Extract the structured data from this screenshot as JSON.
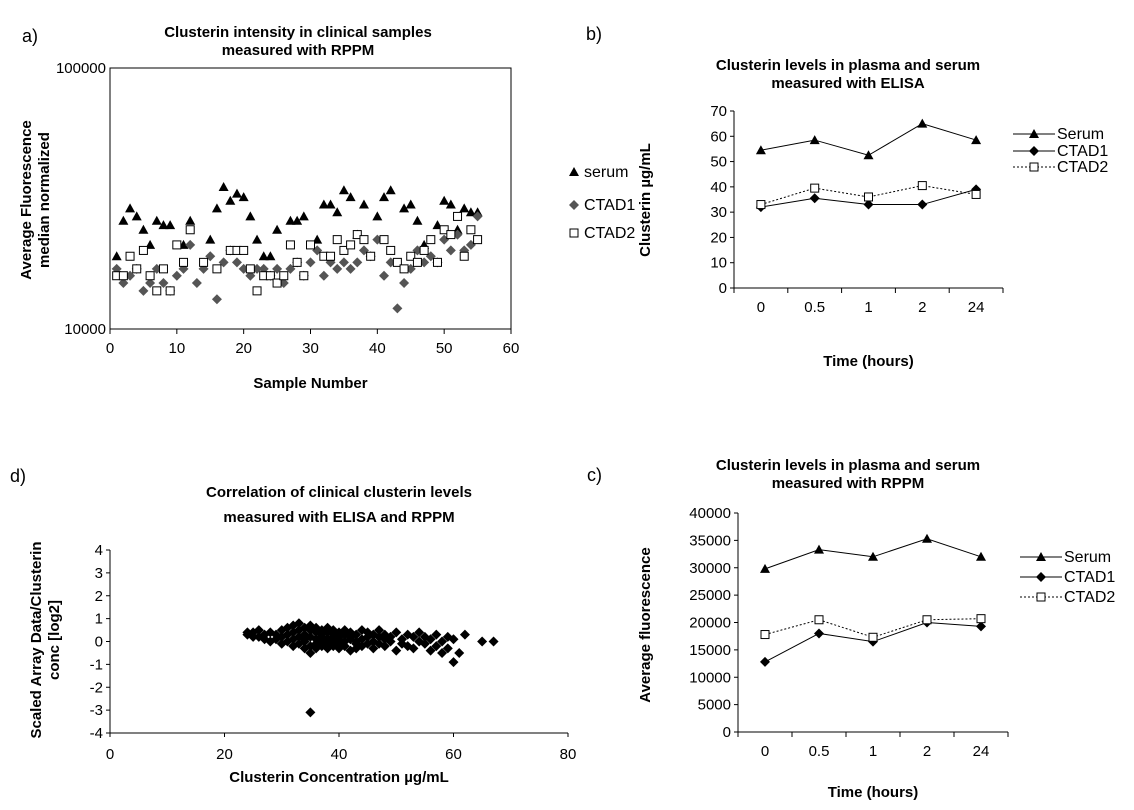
{
  "chart_data": [
    {
      "id": "a",
      "panel_label": "a)",
      "type": "scatter",
      "title": [
        "Clusterin intensity in clinical samples",
        "measured with RPPM"
      ],
      "xlabel": "Sample Number",
      "ylabel": [
        "Average Fluorescence",
        "median normalized"
      ],
      "xlim": [
        0,
        60
      ],
      "ylim": [
        10000,
        100000
      ],
      "yscale": "log",
      "xticks": [
        0,
        10,
        20,
        30,
        40,
        50,
        60
      ],
      "yticks": [
        10000,
        100000
      ],
      "ytick_labels": [
        "10000",
        "100000"
      ],
      "legend_position": "right",
      "series": [
        {
          "name": "serum",
          "marker": "triangle",
          "color": "#000000",
          "x": [
            1,
            2,
            3,
            4,
            5,
            6,
            7,
            8,
            9,
            11,
            12,
            15,
            16,
            17,
            18,
            19,
            20,
            21,
            22,
            23,
            24,
            25,
            27,
            28,
            29,
            31,
            32,
            33,
            34,
            35,
            36,
            37,
            38,
            40,
            41,
            42,
            44,
            45,
            46,
            47,
            49,
            50,
            51,
            52,
            53,
            54,
            55
          ],
          "y": [
            19000,
            26000,
            29000,
            27000,
            24000,
            21000,
            26000,
            25000,
            25000,
            21000,
            26000,
            22000,
            29000,
            35000,
            31000,
            33000,
            32000,
            27000,
            22000,
            19000,
            19000,
            24000,
            26000,
            26000,
            27000,
            22000,
            30000,
            30000,
            28000,
            34000,
            32000,
            23000,
            30000,
            27000,
            32000,
            34000,
            29000,
            30000,
            26000,
            21000,
            25000,
            31000,
            30000,
            24000,
            29000,
            28000,
            28000
          ]
        },
        {
          "name": "CTAD1",
          "marker": "diamond",
          "color": "#555555",
          "x": [
            1,
            2,
            3,
            4,
            5,
            6,
            7,
            8,
            9,
            10,
            11,
            12,
            13,
            14,
            15,
            16,
            17,
            18,
            19,
            20,
            21,
            22,
            23,
            24,
            25,
            26,
            27,
            28,
            29,
            30,
            31,
            32,
            33,
            34,
            35,
            36,
            37,
            38,
            39,
            40,
            41,
            42,
            43,
            44,
            45,
            46,
            47,
            48,
            49,
            50,
            51,
            52,
            53,
            54,
            55
          ],
          "y": [
            17000,
            15000,
            16000,
            17000,
            14000,
            15000,
            17000,
            15000,
            14000,
            16000,
            17000,
            21000,
            15000,
            17000,
            19000,
            13000,
            18000,
            20000,
            18000,
            17000,
            16000,
            17000,
            17000,
            16000,
            17000,
            15000,
            17000,
            18000,
            16000,
            18000,
            20000,
            16000,
            18000,
            17000,
            18000,
            17000,
            18000,
            20000,
            19000,
            22000,
            16000,
            18000,
            12000,
            15000,
            17000,
            20000,
            18000,
            19000,
            18000,
            22000,
            20000,
            23000,
            20000,
            21000,
            27000
          ]
        },
        {
          "name": "CTAD2",
          "marker": "square",
          "color": "#000000",
          "x": [
            1,
            2,
            3,
            4,
            5,
            6,
            7,
            8,
            9,
            10,
            11,
            12,
            14,
            16,
            18,
            19,
            20,
            21,
            22,
            23,
            24,
            25,
            26,
            27,
            28,
            29,
            30,
            32,
            33,
            34,
            35,
            36,
            37,
            38,
            39,
            41,
            42,
            43,
            44,
            45,
            46,
            47,
            48,
            49,
            50,
            51,
            52,
            53,
            54,
            55
          ],
          "y": [
            16000,
            16000,
            19000,
            17000,
            20000,
            16000,
            14000,
            17000,
            14000,
            21000,
            18000,
            24000,
            18000,
            17000,
            20000,
            20000,
            20000,
            17000,
            14000,
            16000,
            16000,
            15000,
            16000,
            21000,
            18000,
            16000,
            21000,
            19000,
            19000,
            22000,
            20000,
            21000,
            23000,
            22000,
            19000,
            22000,
            20000,
            18000,
            17000,
            19000,
            18000,
            20000,
            22000,
            18000,
            24000,
            23000,
            27000,
            19000,
            24000,
            22000
          ]
        }
      ]
    },
    {
      "id": "b",
      "panel_label": "b)",
      "type": "line",
      "title": [
        "Clusterin levels in plasma and serum",
        "measured with ELISA"
      ],
      "xlabel": "Time (hours)",
      "ylabel": [
        "Clusterin µg/mL"
      ],
      "categories": [
        "0",
        "0.5",
        "1",
        "2",
        "24"
      ],
      "ylim": [
        0,
        70
      ],
      "yticks": [
        0,
        10,
        20,
        30,
        40,
        50,
        60,
        70
      ],
      "legend_position": "right",
      "series": [
        {
          "name": "Serum",
          "marker": "triangle",
          "line": "solid",
          "values": [
            54.5,
            58.5,
            52.5,
            65,
            58.5
          ]
        },
        {
          "name": "CTAD1",
          "marker": "diamond",
          "line": "solid",
          "values": [
            32,
            35.5,
            33,
            33,
            39
          ]
        },
        {
          "name": "CTAD2",
          "marker": "square",
          "line": "dotted",
          "values": [
            33,
            39.5,
            36,
            40.5,
            37
          ]
        }
      ]
    },
    {
      "id": "c",
      "panel_label": "c)",
      "type": "line",
      "title": [
        "Clusterin levels in plasma and serum",
        "measured with RPPM"
      ],
      "xlabel": "Time (hours)",
      "ylabel": [
        "Average fluorescence"
      ],
      "categories": [
        "0",
        "0.5",
        "1",
        "2",
        "24"
      ],
      "ylim": [
        0,
        40000
      ],
      "yticks": [
        0,
        5000,
        10000,
        15000,
        20000,
        25000,
        30000,
        35000,
        40000
      ],
      "legend_position": "right",
      "series": [
        {
          "name": "Serum",
          "marker": "triangle",
          "line": "solid",
          "values": [
            29800,
            33300,
            32000,
            35300,
            32000
          ]
        },
        {
          "name": "CTAD1",
          "marker": "diamond",
          "line": "solid",
          "values": [
            12800,
            18000,
            16500,
            20000,
            19300
          ]
        },
        {
          "name": "CTAD2",
          "marker": "square",
          "line": "dotted",
          "values": [
            17800,
            20500,
            17300,
            20500,
            20700
          ]
        }
      ]
    },
    {
      "id": "d",
      "panel_label": "d)",
      "type": "scatter",
      "title": [
        "Correlation of clinical clusterin levels",
        "measured with ELISA and RPPM"
      ],
      "xlabel": "Clusterin Concentration µg/mL",
      "ylabel": [
        "Scaled Array Data/Clusterin",
        "conc [log2]"
      ],
      "xlim": [
        0,
        80
      ],
      "ylim": [
        -4,
        4
      ],
      "xticks": [
        0,
        20,
        40,
        60,
        80
      ],
      "yticks": [
        4,
        3,
        2,
        1,
        0,
        -1,
        -2,
        -3,
        -4
      ],
      "series": [
        {
          "name": "",
          "marker": "diamond",
          "color": "#000000",
          "x": [
            24,
            24,
            25,
            25,
            26,
            26,
            27,
            27,
            28,
            28,
            29,
            29,
            30,
            30,
            30,
            31,
            31,
            31,
            32,
            32,
            32,
            32,
            33,
            33,
            33,
            33,
            34,
            34,
            34,
            34,
            34,
            35,
            35,
            35,
            35,
            35,
            36,
            36,
            36,
            36,
            36,
            37,
            37,
            37,
            37,
            37,
            38,
            38,
            38,
            38,
            38,
            39,
            39,
            39,
            39,
            39,
            40,
            40,
            40,
            40,
            40,
            41,
            41,
            41,
            41,
            42,
            42,
            42,
            42,
            43,
            43,
            43,
            43,
            44,
            44,
            44,
            45,
            45,
            45,
            46,
            46,
            46,
            47,
            47,
            47,
            48,
            48,
            48,
            49,
            49,
            50,
            50,
            51,
            51,
            52,
            52,
            53,
            53,
            54,
            54,
            55,
            55,
            56,
            56,
            57,
            57,
            58,
            58,
            59,
            59,
            60,
            60,
            61,
            62,
            65,
            67,
            35
          ],
          "y": [
            0.3,
            0.4,
            0.4,
            0.2,
            0.5,
            0.2,
            0.3,
            0.1,
            0.4,
            0.0,
            0.3,
            0.1,
            0.5,
            0.2,
            -0.1,
            0.6,
            0.3,
            0.0,
            0.7,
            0.4,
            0.1,
            -0.2,
            0.5,
            0.8,
            0.2,
            -0.1,
            0.6,
            0.3,
            0.0,
            -0.3,
            0.1,
            0.5,
            0.7,
            0.2,
            -0.2,
            -0.5,
            0.4,
            0.1,
            -0.1,
            -0.3,
            0.6,
            0.3,
            0.0,
            -0.2,
            0.5,
            0.2,
            0.4,
            -0.1,
            0.1,
            0.6,
            -0.3,
            0.3,
            0.0,
            -0.2,
            0.5,
            0.2,
            0.4,
            0.1,
            -0.3,
            -0.1,
            0.2,
            0.5,
            -0.2,
            0.0,
            0.3,
            0.1,
            -0.4,
            0.2,
            0.4,
            -0.1,
            0.3,
            0.0,
            -0.3,
            0.5,
            0.1,
            -0.2,
            0.2,
            -0.1,
            0.4,
            0.0,
            0.3,
            -0.3,
            0.2,
            -0.1,
            0.5,
            0.1,
            -0.2,
            0.3,
            0.0,
            0.2,
            -0.4,
            0.4,
            -0.1,
            0.1,
            0.3,
            -0.2,
            0.2,
            -0.3,
            0.0,
            0.4,
            -0.1,
            0.2,
            -0.4,
            0.1,
            0.3,
            -0.2,
            0.0,
            -0.5,
            0.2,
            -0.3,
            -0.9,
            0.1,
            -0.5,
            0.3,
            0.0,
            0.0,
            -3.1
          ]
        }
      ]
    }
  ]
}
